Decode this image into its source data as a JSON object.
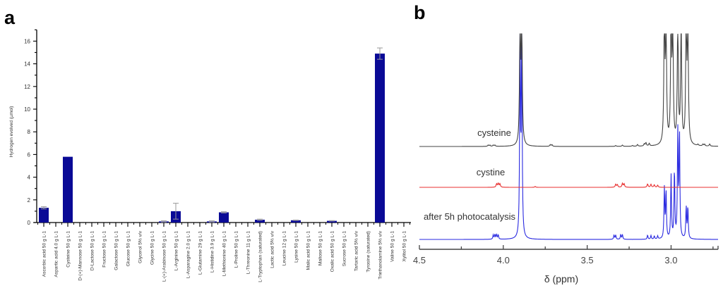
{
  "panels": {
    "a": "a",
    "b": "b"
  },
  "chart_data": [
    {
      "type": "bar",
      "ylabel": "Hydrogen evolved (µmol)",
      "xlabel": "",
      "ylim": [
        0,
        17
      ],
      "yticks": [
        0,
        2,
        4,
        6,
        8,
        10,
        12,
        14,
        16
      ],
      "bar_color": "#0a0a96",
      "error_color": "#999999",
      "categories": [
        "Ascorbic acid 50 g L-1",
        "Aspartic acid 4.0 g L-1",
        "Cysteine 50 g L-1",
        "D-(+)-Mannose 50 g L-1",
        "D-Lactose 50 g L-1",
        "Fructose 50 g L-1",
        "Galactose 50 g L-1",
        "Glucose 50 g L-1",
        "Glycerol 5% v/v",
        "Glycine 50 g L-1",
        "L-(+)-Arabinose 50 g L-1",
        "L-Arginine 50 g L-1",
        "L-Asparagine 2.0 g L-1",
        "L-Glutamine 29 g L-1",
        "L-Histidine 3.9 g L-1",
        "L-Methionine 40 g L-1",
        "L-Proline 50 g L-1",
        "L-Threonine 11 g L-1",
        "L-Tryptophan (saturated)",
        "Lactic acid 5% v/v",
        "Leucine 12 g L-1",
        "Lysine 50 g L-1",
        "Malic acid 50 g L-1",
        "Maltose 50 g L-1",
        "Oxalic acid 50 g L-1",
        "Sucrose 50 g L-1",
        "Tartaric acid 5% v/v",
        "Tyrosine (saturated)",
        "Triethanolamine 5% v/v",
        "Valine 50 g L-1",
        "Xylitol 50 g L-1"
      ],
      "values": [
        1.3,
        0,
        5.8,
        0,
        0,
        0,
        0,
        0,
        0,
        0,
        0.1,
        1.0,
        0,
        0,
        0.1,
        0.9,
        0,
        0,
        0.25,
        0,
        0,
        0.2,
        0,
        0,
        0.15,
        0,
        0,
        0,
        14.9,
        0,
        0
      ],
      "errors": [
        0.1,
        0,
        0,
        0,
        0,
        0,
        0,
        0,
        0,
        0,
        0.05,
        0.7,
        0,
        0,
        0.05,
        0.05,
        0,
        0,
        0.05,
        0,
        0,
        0.02,
        0,
        0,
        0.02,
        0,
        0,
        0,
        0.5,
        0,
        0
      ]
    },
    {
      "type": "line",
      "xlabel": "δ (ppm)",
      "xlim": [
        4.5,
        2.72
      ],
      "xticks": [
        "4.5",
        "4.0",
        "3.5",
        "3.0"
      ],
      "xtick_values": [
        4.5,
        4.0,
        3.5,
        3.0
      ],
      "series": [
        {
          "name": "cysteine",
          "color": "#444444",
          "peaks": [
            [
              4.09,
              0.03
            ],
            [
              4.08,
              0.03
            ],
            [
              4.06,
              0.03
            ],
            [
              4.05,
              0.03
            ],
            [
              3.9,
              3.0
            ],
            [
              3.89,
              3.0
            ],
            [
              3.72,
              0.04
            ],
            [
              3.71,
              0.04
            ],
            [
              3.33,
              0.02
            ],
            [
              3.29,
              0.03
            ],
            [
              3.23,
              0.02
            ],
            [
              3.2,
              0.04
            ],
            [
              3.16,
              0.05
            ],
            [
              3.15,
              0.08
            ],
            [
              3.13,
              0.06
            ],
            [
              3.04,
              3.0
            ],
            [
              3.03,
              3.0
            ],
            [
              3.0,
              3.0
            ],
            [
              2.99,
              3.0
            ],
            [
              2.96,
              3.0
            ],
            [
              2.94,
              3.0
            ],
            [
              2.91,
              3.0
            ],
            [
              2.9,
              3.0
            ],
            [
              2.84,
              0.03
            ],
            [
              2.81,
              0.04
            ],
            [
              2.8,
              0.04
            ],
            [
              2.77,
              0.05
            ]
          ]
        },
        {
          "name": "cystine",
          "color": "#e83030",
          "peaks": [
            [
              4.04,
              0.08
            ],
            [
              4.03,
              0.09
            ],
            [
              4.02,
              0.08
            ],
            [
              3.81,
              0.02
            ],
            [
              3.33,
              0.07
            ],
            [
              3.32,
              0.06
            ],
            [
              3.29,
              0.09
            ],
            [
              3.28,
              0.08
            ],
            [
              3.14,
              0.08
            ],
            [
              3.12,
              0.07
            ],
            [
              3.1,
              0.06
            ],
            [
              3.08,
              0.05
            ]
          ]
        },
        {
          "name": "after 5h photocatalysis",
          "color": "#2a2ae0",
          "peaks": [
            [
              4.06,
              0.08
            ],
            [
              4.05,
              0.09
            ],
            [
              4.04,
              0.09
            ],
            [
              4.03,
              0.08
            ],
            [
              3.9,
              4.0
            ],
            [
              3.89,
              4.0
            ],
            [
              3.34,
              0.08
            ],
            [
              3.33,
              0.08
            ],
            [
              3.3,
              0.09
            ],
            [
              3.29,
              0.09
            ],
            [
              3.14,
              0.08
            ],
            [
              3.12,
              0.07
            ],
            [
              3.1,
              0.06
            ],
            [
              3.08,
              0.06
            ],
            [
              3.04,
              0.95
            ],
            [
              3.03,
              0.9
            ],
            [
              3.0,
              1.2
            ],
            [
              2.98,
              1.3
            ],
            [
              2.96,
              2.0
            ],
            [
              2.95,
              2.0
            ],
            [
              2.91,
              0.6
            ],
            [
              2.9,
              0.6
            ]
          ]
        }
      ]
    }
  ]
}
